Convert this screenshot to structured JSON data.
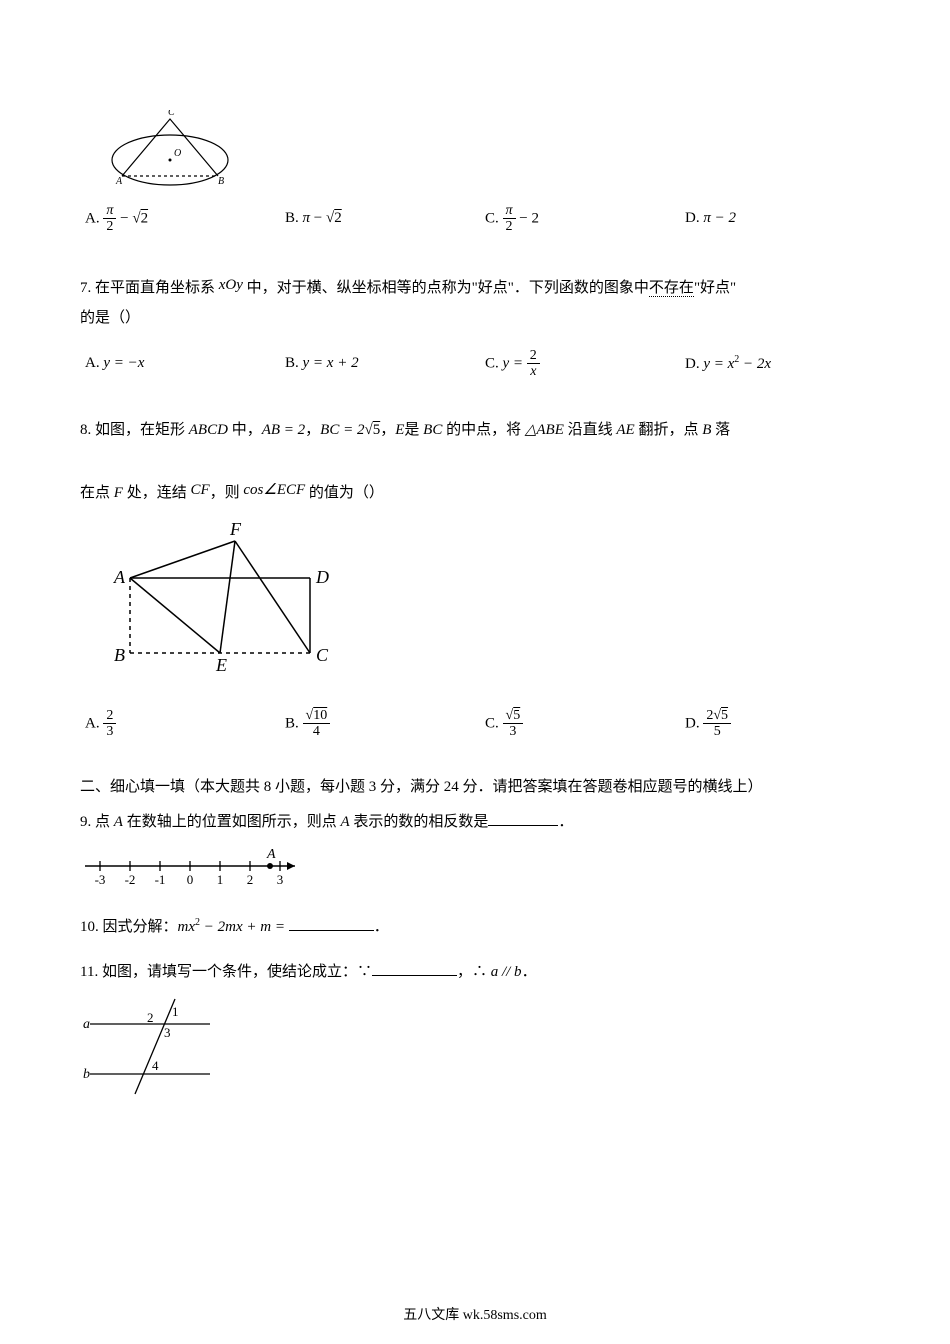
{
  "q6": {
    "optA_prefix": "A. ",
    "optA_num": "π",
    "optA_den": "2",
    "optA_mid": " − ",
    "optA_sqrt": "2",
    "optB_prefix": "B.  ",
    "optB_text": " − ",
    "optB_pi": "π",
    "optB_sqrt": "2",
    "optC_prefix": "C. ",
    "optC_num": "π",
    "optC_den": "2",
    "optC_mid": " − 2",
    "optD_prefix": "D.  ",
    "optD_text": "π − 2"
  },
  "q7": {
    "text1": "7. 在平面直角坐标系 ",
    "xoy": "xOy",
    "text2": " 中，对于横、纵坐标相等的点称为\"好点\"．下列函数的图象中",
    "text_not": "不存在",
    "text3": "\"好点\"",
    "text4": "的是（）",
    "optA_prefix": "A.  ",
    "optA": "y = −x",
    "optB_prefix": "B.  ",
    "optB": "y = x + 2",
    "optC_prefix": "C.  ",
    "optC_lhs": "y = ",
    "optC_num": "2",
    "optC_den": "x",
    "optD_prefix": "D.  ",
    "optD_lhs": "y = x",
    "optD_exp": "2",
    "optD_rest": " − 2x"
  },
  "q8": {
    "text1": "8. 如图，在矩形 ",
    "abcd": "ABCD",
    "text2": " 中，",
    "ab": "AB = 2",
    "text3": "，",
    "bc_lhs": "BC = 2",
    "bc_sqrt": "5",
    "text4": "，",
    "e_is": "E",
    "text5": "是 ",
    "bc2": "BC",
    "text6": " 的中点，将 ",
    "tri": "△ABE",
    "text7": " 沿直线 ",
    "ae": "AE",
    "text8": " 翻折，点 ",
    "b": "B",
    "text9": " 落",
    "line2a": "在点 ",
    "f": "F",
    "line2b": " 处，连结 ",
    "cf": "CF",
    "line2c": "，则 ",
    "cos": "cos∠ECF",
    "line2d": " 的值为（）",
    "optA_prefix": "A. ",
    "optA_num": "2",
    "optA_den": "3",
    "optB_prefix": "B. ",
    "optB_sqrt": "10",
    "optB_den": "4",
    "optC_prefix": "C. ",
    "optC_sqrt": "5",
    "optC_den": "3",
    "optD_prefix": "D. ",
    "optD_num_pre": "2",
    "optD_sqrt": "5",
    "optD_den": "5",
    "labels": {
      "F": "F",
      "A": "A",
      "D": "D",
      "B": "B",
      "E": "E",
      "C": "C"
    }
  },
  "section2": {
    "title": "二、细心填一填（本大题共 8 小题，每小题 3 分，满分 24 分．请把答案填在答题卷相应题号的横线上）"
  },
  "q9": {
    "text1": "9. 点 ",
    "a": "A",
    "text2": " 在数轴上的位置如图所示，则点 ",
    "a2": "A",
    "text3": " 表示的数的相反数是",
    "text4": "．",
    "ticks": [
      "-3",
      "-2",
      "-1",
      "0",
      "1",
      "2",
      "3"
    ],
    "pointLabel": "A"
  },
  "q10": {
    "text1": "10. 因式分解：",
    "expr_pre": "mx",
    "expr_exp": "2",
    "expr_rest": " − 2mx + m = ",
    "text2": "．"
  },
  "q11": {
    "text1": "11. 如图，请填写一个条件，使结论成立：∵",
    "text2": "，∴ ",
    "ab": "a // b",
    "text3": "．",
    "labels": {
      "a": "a",
      "b": "b",
      "n1": "1",
      "n2": "2",
      "n3": "3",
      "n4": "4"
    }
  },
  "footer": {
    "text": "五八文库 wk.58sms.com"
  },
  "colors": {
    "text": "#000000",
    "bg": "#ffffff",
    "linkblue": "#0000ee"
  }
}
